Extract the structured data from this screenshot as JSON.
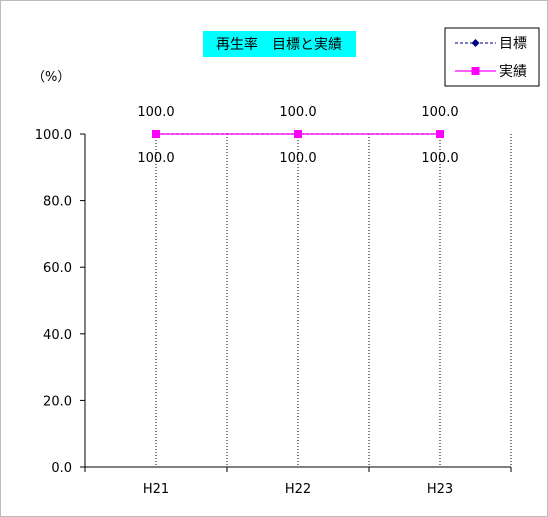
{
  "chart_data": {
    "type": "line",
    "title": "再生率　目標と実績",
    "unit_label": "（%）",
    "categories": [
      "H21",
      "H22",
      "H23"
    ],
    "series": [
      {
        "name": "目標",
        "values": [
          100.0,
          100.0,
          100.0
        ],
        "color": "#000080",
        "style": "dashed",
        "marker": "diamond"
      },
      {
        "name": "実績",
        "values": [
          100.0,
          100.0,
          100.0
        ],
        "color": "#ff00ff",
        "style": "solid",
        "marker": "square"
      }
    ],
    "data_labels_above": [
      "100.0",
      "100.0",
      "100.0"
    ],
    "data_labels_below": [
      "100.0",
      "100.0",
      "100.0"
    ],
    "yticks": [
      "0.0",
      "20.0",
      "40.0",
      "60.0",
      "80.0",
      "100.0"
    ],
    "ylim": [
      0,
      100
    ],
    "grid": "vertical dotted",
    "legend_position": "top-right",
    "title_background": "#00ffff"
  }
}
